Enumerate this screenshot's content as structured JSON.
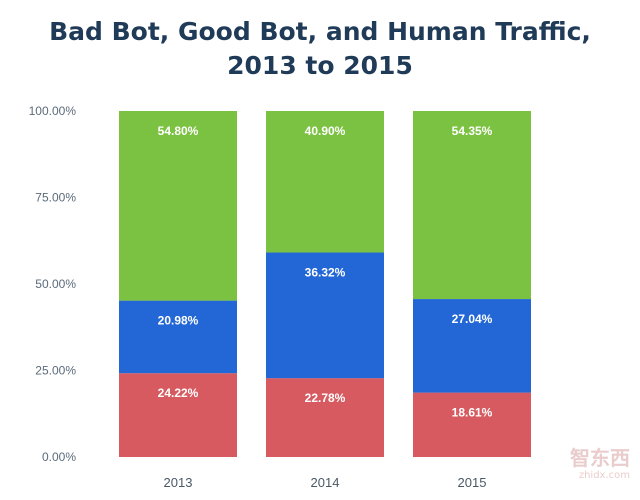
{
  "chart_data": {
    "type": "bar",
    "stacked": true,
    "title_lines": [
      "Bad Bot, Good Bot, and Human Traffic,",
      "2013 to 2015"
    ],
    "categories": [
      "2013",
      "2014",
      "2015"
    ],
    "series": [
      {
        "values": [
          24.22,
          22.78,
          18.61
        ],
        "labels": [
          "24.22%",
          "22.78%",
          "18.61%"
        ],
        "color": "#d65a5f"
      },
      {
        "values": [
          20.98,
          36.32,
          27.04
        ],
        "labels": [
          "20.98%",
          "36.32%",
          "27.04%"
        ],
        "color": "#2367d6"
      },
      {
        "values": [
          54.8,
          40.9,
          54.35
        ],
        "labels": [
          "54.80%",
          "40.90%",
          "54.35%"
        ],
        "color": "#7cc242"
      }
    ],
    "y_ticks": [
      "0.00%",
      "25.00%",
      "50.00%",
      "75.00%",
      "100.00%"
    ],
    "ylim": [
      0,
      100
    ],
    "grid": false,
    "legend": "none"
  },
  "watermark": {
    "main": "智东西",
    "sub": "zhidx.com"
  }
}
